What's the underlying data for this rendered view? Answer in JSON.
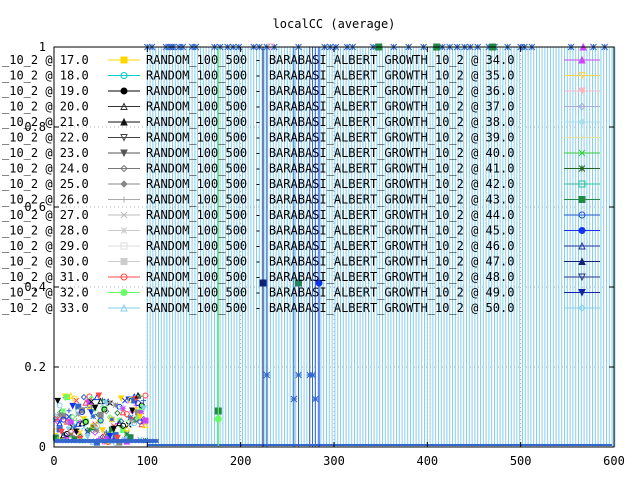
{
  "chart_data": {
    "type": "scatter",
    "title": "localCC (average)",
    "xlabel": "",
    "ylabel": "",
    "xlim": [
      0,
      600
    ],
    "ylim": [
      0,
      1
    ],
    "x_ticks": [
      0,
      100,
      200,
      300,
      400,
      500,
      600
    ],
    "x_tick_labels": [
      "0",
      "100",
      "200",
      "300",
      "400",
      "500",
      "600"
    ],
    "y_ticks": [
      0,
      0.2,
      0.4,
      0.6,
      0.8,
      1
    ],
    "y_tick_labels": [
      "0",
      "0.2",
      "0.4",
      "0.6",
      "0.8",
      "1"
    ],
    "grid": "dotted",
    "legend_placement": "top-left",
    "legend_left": [
      {
        "text": "_10_2 @ 17.0",
        "color": "#ffd700",
        "marker": "square-filled"
      },
      {
        "text": "_10_2 @ 18.0",
        "color": "#00cccc",
        "marker": "circle"
      },
      {
        "text": "_10_2 @ 19.0",
        "color": "#000000",
        "marker": "circle-filled"
      },
      {
        "text": "_10_2 @ 20.0",
        "color": "#333333",
        "marker": "triangle"
      },
      {
        "text": "_10_2 @ 21.0",
        "color": "#111111",
        "marker": "triangle-filled"
      },
      {
        "text": "_10_2 @ 22.0",
        "color": "#444444",
        "marker": "triangle-down"
      },
      {
        "text": "_10_2 @ 23.0",
        "color": "#555555",
        "marker": "triangle-down-filled"
      },
      {
        "text": "_10_2 @ 24.0",
        "color": "#777777",
        "marker": "diamond"
      },
      {
        "text": "_10_2 @ 25.0",
        "color": "#888888",
        "marker": "diamond-filled"
      },
      {
        "text": "_10_2 @ 26.0",
        "color": "#aaaaaa",
        "marker": "plus"
      },
      {
        "text": "_10_2 @ 27.0",
        "color": "#bbbbbb",
        "marker": "cross"
      },
      {
        "text": "_10_2 @ 28.0",
        "color": "#cccccc",
        "marker": "star"
      },
      {
        "text": "_10_2 @ 29.0",
        "color": "#dddddd",
        "marker": "square"
      },
      {
        "text": "_10_2 @ 30.0",
        "color": "#cccccc",
        "marker": "square-filled"
      },
      {
        "text": "_10_2 @ 31.0",
        "color": "#ff4444",
        "marker": "circle"
      },
      {
        "text": "_10_2 @ 32.0",
        "color": "#66ff66",
        "marker": "circle-filled"
      },
      {
        "text": "_10_2 @ 33.0",
        "color": "#87ceeb",
        "marker": "triangle"
      }
    ],
    "legend_right": [
      {
        "text": "RANDOM_100_500 - BARABASI_ALBERT_GROWTH_10_2 @ 34.0",
        "color": "#cc44ff",
        "marker": "triangle-filled"
      },
      {
        "text": "RANDOM_100_500 - BARABASI_ALBERT_GROWTH_10_2 @ 35.0",
        "color": "#ffd24d",
        "marker": "triangle-down"
      },
      {
        "text": "RANDOM_100_500 - BARABASI_ALBERT_GROWTH_10_2 @ 36.0",
        "color": "#ffb6c1",
        "marker": "triangle-down-filled"
      },
      {
        "text": "RANDOM_100_500 - BARABASI_ALBERT_GROWTH_10_2 @ 37.0",
        "color": "#aaaadd",
        "marker": "diamond"
      },
      {
        "text": "RANDOM_100_500 - BARABASI_ALBERT_GROWTH_10_2 @ 38.0",
        "color": "#aaddee",
        "marker": "diamond-filled"
      },
      {
        "text": "RANDOM_100_500 - BARABASI_ALBERT_GROWTH_10_2 @ 39.0",
        "color": "#e0e0a0",
        "marker": "plus"
      },
      {
        "text": "RANDOM_100_500 - BARABASI_ALBERT_GROWTH_10_2 @ 40.0",
        "color": "#33cc33",
        "marker": "cross"
      },
      {
        "text": "RANDOM_100_500 - BARABASI_ALBERT_GROWTH_10_2 @ 41.0",
        "color": "#226622",
        "marker": "star"
      },
      {
        "text": "RANDOM_100_500 - BARABASI_ALBERT_GROWTH_10_2 @ 42.0",
        "color": "#33bb99",
        "marker": "square"
      },
      {
        "text": "RANDOM_100_500 - BARABASI_ALBERT_GROWTH_10_2 @ 43.0",
        "color": "#228844",
        "marker": "square-filled"
      },
      {
        "text": "RANDOM_100_500 - BARABASI_ALBERT_GROWTH_10_2 @ 44.0",
        "color": "#2255cc",
        "marker": "circle"
      },
      {
        "text": "RANDOM_100_500 - BARABASI_ALBERT_GROWTH_10_2 @ 45.0",
        "color": "#1133ee",
        "marker": "circle-filled"
      },
      {
        "text": "RANDOM_100_500 - BARABASI_ALBERT_GROWTH_10_2 @ 46.0",
        "color": "#223399",
        "marker": "triangle"
      },
      {
        "text": "RANDOM_100_500 - BARABASI_ALBERT_GROWTH_10_2 @ 47.0",
        "color": "#112277",
        "marker": "triangle-filled"
      },
      {
        "text": "RANDOM_100_500 - BARABASI_ALBERT_GROWTH_10_2 @ 48.0",
        "color": "#223388",
        "marker": "triangle-down"
      },
      {
        "text": "RANDOM_100_500 - BARABASI_ALBERT_GROWTH_10_2 @ 49.0",
        "color": "#1122aa",
        "marker": "triangle-down-filled"
      },
      {
        "text": "RANDOM_100_500 - BARABASI_ALBERT_GROWTH_10_2 @ 50.0",
        "color": "#87ceeb",
        "marker": "diamond"
      }
    ],
    "cluster_color": "#3366cc",
    "cluster_x_range": [
      2,
      98
    ],
    "spike_color": "#87ceeb",
    "spike_x_start": 100,
    "spike_x_end": 598,
    "spike_step": 6,
    "upper_points": [
      {
        "x": 100,
        "y": 1,
        "color": "#3366cc",
        "marker": "star"
      },
      {
        "x": 105,
        "y": 1,
        "color": "#3366cc",
        "marker": "star"
      },
      {
        "x": 120,
        "y": 1,
        "color": "#3366cc",
        "marker": "star"
      },
      {
        "x": 124,
        "y": 1,
        "color": "#3366cc",
        "marker": "star"
      },
      {
        "x": 126,
        "y": 1,
        "color": "#3366cc",
        "marker": "star"
      },
      {
        "x": 128,
        "y": 1,
        "color": "#3366cc",
        "marker": "star"
      },
      {
        "x": 134,
        "y": 1,
        "color": "#3366cc",
        "marker": "star"
      },
      {
        "x": 138,
        "y": 1,
        "color": "#3366cc",
        "marker": "star"
      },
      {
        "x": 148,
        "y": 1,
        "color": "#3366cc",
        "marker": "star"
      },
      {
        "x": 152,
        "y": 1,
        "color": "#3366cc",
        "marker": "star"
      },
      {
        "x": 172,
        "y": 1,
        "color": "#3366cc",
        "marker": "star"
      },
      {
        "x": 178,
        "y": 1,
        "color": "#3366cc",
        "marker": "star"
      },
      {
        "x": 186,
        "y": 1,
        "color": "#3366cc",
        "marker": "star"
      },
      {
        "x": 192,
        "y": 1,
        "color": "#3366cc",
        "marker": "star"
      },
      {
        "x": 198,
        "y": 1,
        "color": "#3366cc",
        "marker": "star"
      },
      {
        "x": 214,
        "y": 1,
        "color": "#3366cc",
        "marker": "star"
      },
      {
        "x": 220,
        "y": 1,
        "color": "#3366cc",
        "marker": "star"
      },
      {
        "x": 228,
        "y": 1,
        "color": "#3366cc",
        "marker": "star"
      },
      {
        "x": 236,
        "y": 1,
        "color": "#3366cc",
        "marker": "star"
      },
      {
        "x": 262,
        "y": 1,
        "color": "#3366cc",
        "marker": "star"
      },
      {
        "x": 290,
        "y": 1,
        "color": "#3366cc",
        "marker": "star"
      },
      {
        "x": 296,
        "y": 1,
        "color": "#3366cc",
        "marker": "star"
      },
      {
        "x": 302,
        "y": 1,
        "color": "#3366cc",
        "marker": "star"
      },
      {
        "x": 314,
        "y": 1,
        "color": "#3366cc",
        "marker": "star"
      },
      {
        "x": 320,
        "y": 1,
        "color": "#3366cc",
        "marker": "star"
      },
      {
        "x": 342,
        "y": 1,
        "color": "#3366cc",
        "marker": "star"
      },
      {
        "x": 364,
        "y": 1,
        "color": "#3366cc",
        "marker": "star"
      },
      {
        "x": 380,
        "y": 1,
        "color": "#3366cc",
        "marker": "star"
      },
      {
        "x": 396,
        "y": 1,
        "color": "#3366cc",
        "marker": "star"
      },
      {
        "x": 416,
        "y": 1,
        "color": "#3366cc",
        "marker": "star"
      },
      {
        "x": 424,
        "y": 1,
        "color": "#3366cc",
        "marker": "star"
      },
      {
        "x": 432,
        "y": 1,
        "color": "#3366cc",
        "marker": "star"
      },
      {
        "x": 440,
        "y": 1,
        "color": "#3366cc",
        "marker": "star"
      },
      {
        "x": 446,
        "y": 1,
        "color": "#3366cc",
        "marker": "star"
      },
      {
        "x": 454,
        "y": 1,
        "color": "#3366cc",
        "marker": "star"
      },
      {
        "x": 466,
        "y": 1,
        "color": "#3366cc",
        "marker": "star"
      },
      {
        "x": 472,
        "y": 1,
        "color": "#3366cc",
        "marker": "star"
      },
      {
        "x": 486,
        "y": 1,
        "color": "#3366cc",
        "marker": "star"
      },
      {
        "x": 500,
        "y": 1,
        "color": "#3366cc",
        "marker": "star"
      },
      {
        "x": 504,
        "y": 1,
        "color": "#3366cc",
        "marker": "star"
      },
      {
        "x": 512,
        "y": 1,
        "color": "#3366cc",
        "marker": "star"
      },
      {
        "x": 554,
        "y": 1,
        "color": "#3366cc",
        "marker": "star"
      },
      {
        "x": 578,
        "y": 1,
        "color": "#3366cc",
        "marker": "star"
      },
      {
        "x": 590,
        "y": 1,
        "color": "#3366cc",
        "marker": "star"
      },
      {
        "x": 348,
        "y": 1,
        "color": "#228844",
        "marker": "square-filled"
      },
      {
        "x": 410,
        "y": 1,
        "color": "#228844",
        "marker": "square-filled"
      },
      {
        "x": 470,
        "y": 1,
        "color": "#228844",
        "marker": "square-filled"
      },
      {
        "x": 232,
        "y": 1,
        "color": "#ffb6c1",
        "marker": "triangle-down"
      },
      {
        "x": 567,
        "y": 1,
        "color": "#cc44ff",
        "marker": "triangle-filled"
      },
      {
        "x": 224,
        "y": 0.41,
        "color": "#112277",
        "marker": "square-filled"
      },
      {
        "x": 228,
        "y": 0.18,
        "color": "#3366cc",
        "marker": "star"
      },
      {
        "x": 262,
        "y": 0.41,
        "color": "#228844",
        "marker": "square-filled"
      },
      {
        "x": 262,
        "y": 0.18,
        "color": "#3366cc",
        "marker": "star"
      },
      {
        "x": 274,
        "y": 0.18,
        "color": "#3366cc",
        "marker": "star"
      },
      {
        "x": 277,
        "y": 0.18,
        "color": "#3366cc",
        "marker": "star"
      },
      {
        "x": 280,
        "y": 0.12,
        "color": "#3366cc",
        "marker": "star"
      },
      {
        "x": 284,
        "y": 0.41,
        "color": "#1133ee",
        "marker": "circle-filled"
      },
      {
        "x": 176,
        "y": 0.09,
        "color": "#228844",
        "marker": "square-filled"
      },
      {
        "x": 176,
        "y": 0.07,
        "color": "#66ff66",
        "marker": "circle-filled"
      },
      {
        "x": 257,
        "y": 0.12,
        "color": "#3366cc",
        "marker": "star"
      }
    ]
  }
}
